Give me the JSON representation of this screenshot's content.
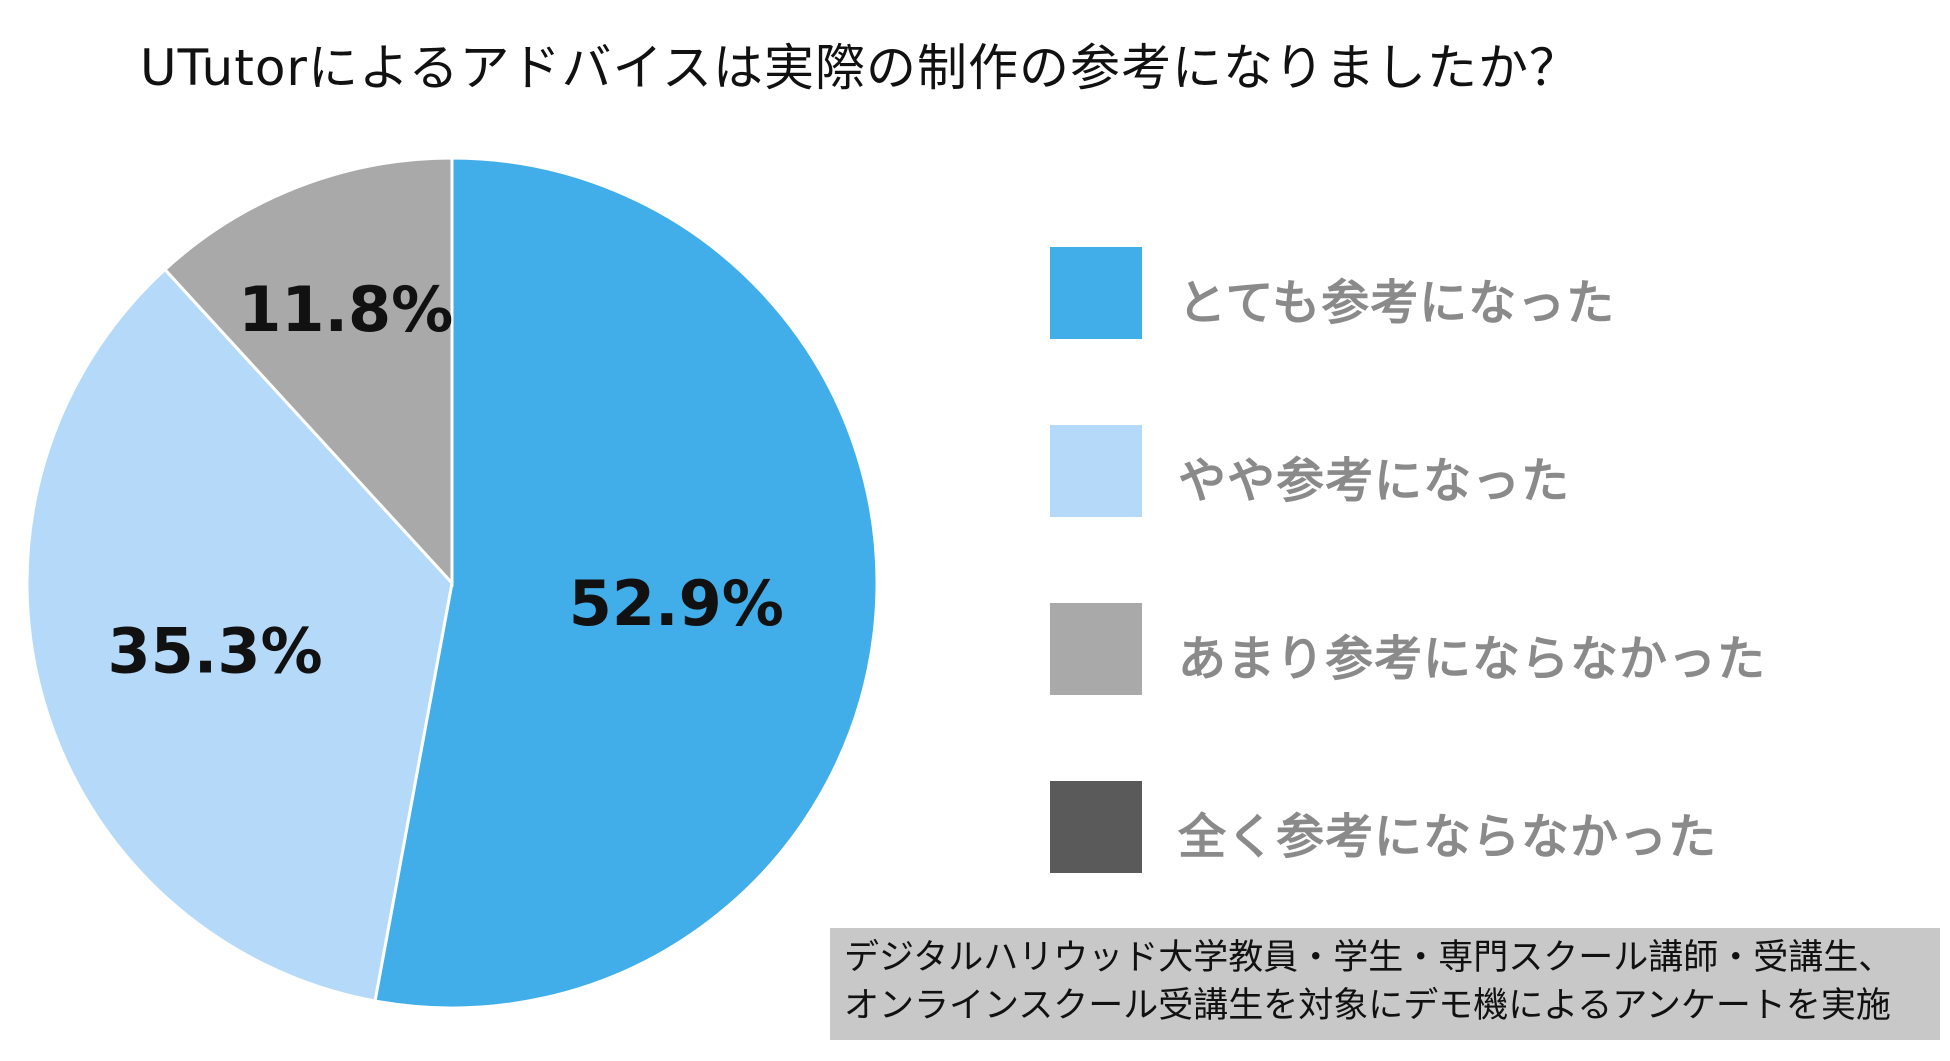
{
  "chart_data": {
    "type": "pie",
    "title": "UTutorによるアドバイスは実際の制作の参考になりましたか？",
    "slices": [
      {
        "label": "とても参考になった",
        "value": 52.9,
        "value_label": "52.9%",
        "color": "#41aee9"
      },
      {
        "label": "やや参考になった",
        "value": 35.3,
        "value_label": "35.3%",
        "color": "#b5daf9"
      },
      {
        "label": "あまり参考にならなかった",
        "value": 11.8,
        "value_label": "11.8%",
        "color": "#a9a9a9"
      },
      {
        "label": "全く参考にならなかった",
        "value": 0,
        "value_label": "",
        "color": "#5a5a5a"
      }
    ],
    "legend_placement": "right",
    "start_angle": "top",
    "direction": "clockwise"
  },
  "note": {
    "lines": [
      "デジタルハリウッド大学教員・学生・専門スクール講師・受講生、",
      "オンラインスクール受講生を対象にデモ機によるアンケートを実施"
    ]
  }
}
